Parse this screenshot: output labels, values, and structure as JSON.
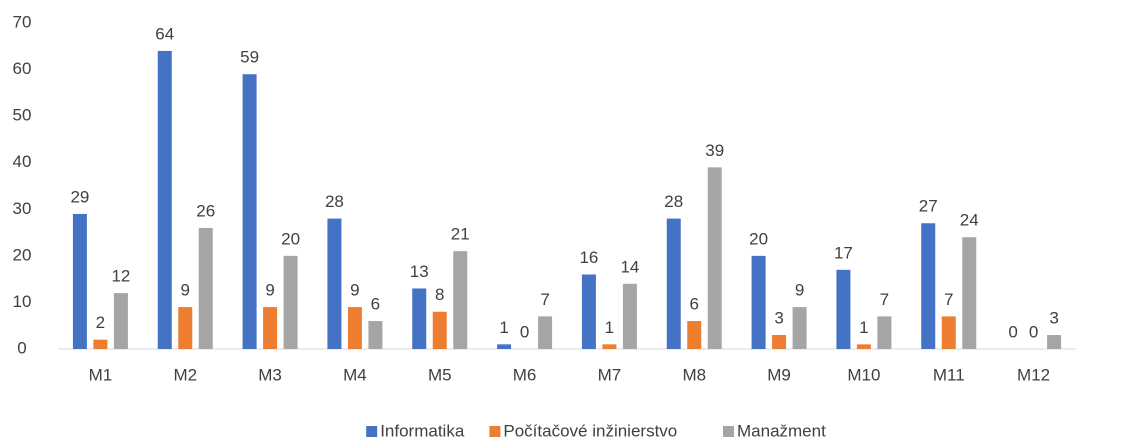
{
  "chart_data": {
    "type": "bar",
    "categories": [
      "M1",
      "M2",
      "M3",
      "M4",
      "M5",
      "M6",
      "M7",
      "M8",
      "M9",
      "M10",
      "M11",
      "M12"
    ],
    "series": [
      {
        "name": "Informatika",
        "color": "#4472c4",
        "values": [
          29,
          64,
          59,
          28,
          13,
          1,
          16,
          28,
          20,
          17,
          27,
          0
        ]
      },
      {
        "name": "Počítačové inžinierstvo",
        "color": "#ed7d31",
        "values": [
          2,
          9,
          9,
          9,
          8,
          0,
          1,
          6,
          3,
          1,
          7,
          0
        ]
      },
      {
        "name": "Manažment",
        "color": "#a5a5a5",
        "values": [
          12,
          26,
          20,
          6,
          21,
          7,
          14,
          39,
          9,
          7,
          24,
          3
        ]
      }
    ],
    "ylim": [
      0,
      70
    ],
    "yticks": [
      0,
      10,
      20,
      30,
      40,
      50,
      60,
      70
    ],
    "grid": false,
    "legend": "bottom"
  }
}
